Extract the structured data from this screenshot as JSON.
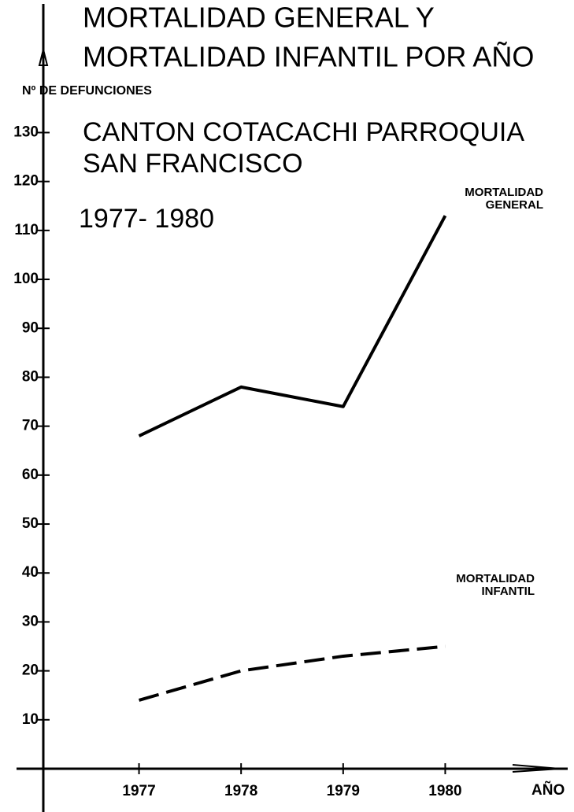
{
  "chart_data": {
    "type": "line",
    "title": [
      "MORTALIDAD GENERAL Y",
      "MORTALIDAD INFANTIL POR AÑO"
    ],
    "subtitle": [
      "CANTON COTACACHI PARROQUIA",
      "SAN FRANCISCO",
      "1977- 1980"
    ],
    "y_label": "Nº DE DEFUNCIONES",
    "x_label": "AÑO",
    "x": [
      1977,
      1978,
      1979,
      1980
    ],
    "xlim": [
      1975.8,
      1981.2
    ],
    "xticks": [
      1977,
      1978,
      1979,
      1980
    ],
    "ylim": [
      0,
      155
    ],
    "yticks": [
      10,
      20,
      30,
      40,
      50,
      60,
      70,
      80,
      90,
      100,
      110,
      120,
      130
    ],
    "series": [
      {
        "name": "MORTALIDAD GENERAL",
        "color": "#000000",
        "dash": "solid",
        "values": [
          68,
          78,
          74,
          113
        ]
      },
      {
        "name": "MORTALIDAD INFANTIL",
        "color": "#000000",
        "dash": "dashed",
        "values": [
          14,
          20,
          23,
          25
        ]
      }
    ]
  }
}
